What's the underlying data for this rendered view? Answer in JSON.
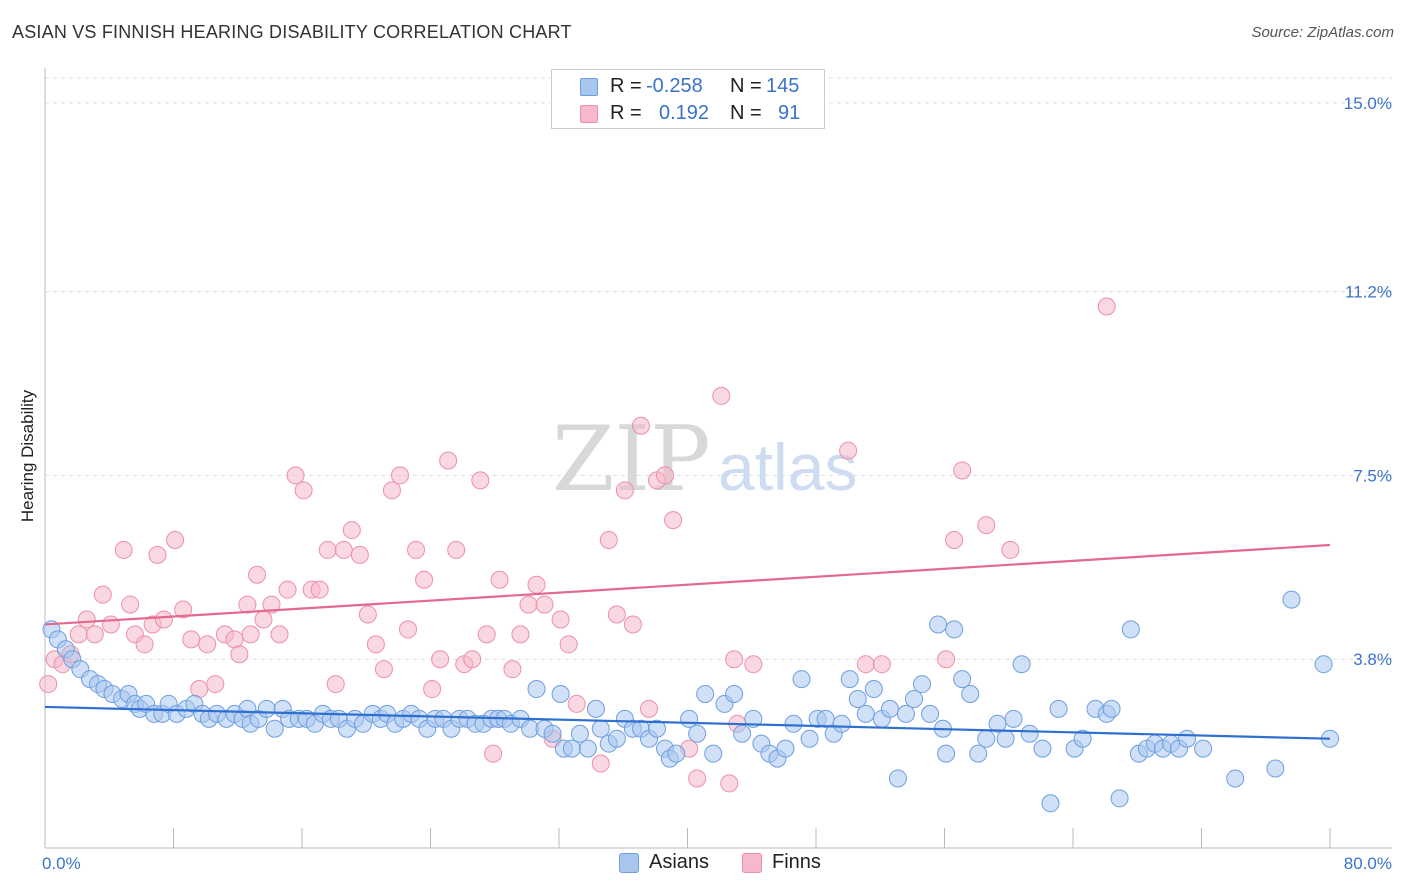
{
  "title": "ASIAN VS FINNISH HEARING DISABILITY CORRELATION CHART",
  "source": "Source: ZipAtlas.com",
  "watermark": {
    "zip": "ZIP",
    "atlas": "atlas"
  },
  "legend_top": [
    {
      "r_label": "R =",
      "r_value": "-0.258",
      "n_label": "N =",
      "n_value": "145",
      "color": "#a9c6ee"
    },
    {
      "r_label": "R =",
      "r_value": "0.192",
      "n_label": "N =",
      "n_value": "91",
      "color": "#f6b8ca"
    }
  ],
  "legend_bottom": [
    {
      "label": "Asians",
      "color": "#a9c6ee"
    },
    {
      "label": "Finns",
      "color": "#f6b8ca"
    }
  ],
  "colors": {
    "asian_fill": "#a9c6ee",
    "asian_stroke": "#6e9fe0",
    "asian_line": "#2f6fd0",
    "finn_fill": "#f6b8ca",
    "finn_stroke": "#ec8fab",
    "finn_line": "#e3698f",
    "tick_label": "#3a73c9",
    "grid": "#dddddd"
  },
  "chart_data": {
    "type": "scatter",
    "title": "ASIAN VS FINNISH HEARING DISABILITY CORRELATION CHART",
    "xlabel": "",
    "ylabel": "Hearing Disability",
    "xlim": [
      0,
      80
    ],
    "ylim": [
      0,
      15.5
    ],
    "x_tick_labels": [
      "0.0%",
      "80.0%"
    ],
    "y_ticks": [
      3.8,
      7.5,
      11.2,
      15.0
    ],
    "y_tick_labels": [
      "3.8%",
      "7.5%",
      "11.2%",
      "15.0%"
    ],
    "grid": "horizontal dashed",
    "series": [
      {
        "name": "Asians",
        "trend": {
          "x": [
            0,
            80
          ],
          "y": [
            2.84,
            2.2
          ]
        },
        "points": [
          [
            0.4,
            4.4
          ],
          [
            0.8,
            4.2
          ],
          [
            1.3,
            4.0
          ],
          [
            1.7,
            3.8
          ],
          [
            2.2,
            3.6
          ],
          [
            2.8,
            3.4
          ],
          [
            3.3,
            3.3
          ],
          [
            3.7,
            3.2
          ],
          [
            4.2,
            3.1
          ],
          [
            4.8,
            3.0
          ],
          [
            5.2,
            3.1
          ],
          [
            5.6,
            2.9
          ],
          [
            5.9,
            2.8
          ],
          [
            6.3,
            2.9
          ],
          [
            6.8,
            2.7
          ],
          [
            7.3,
            2.7
          ],
          [
            7.7,
            2.9
          ],
          [
            8.2,
            2.7
          ],
          [
            8.8,
            2.8
          ],
          [
            9.3,
            2.9
          ],
          [
            9.8,
            2.7
          ],
          [
            10.2,
            2.6
          ],
          [
            10.7,
            2.7
          ],
          [
            11.3,
            2.6
          ],
          [
            11.8,
            2.7
          ],
          [
            12.3,
            2.6
          ],
          [
            12.6,
            2.8
          ],
          [
            12.8,
            2.5
          ],
          [
            13.3,
            2.6
          ],
          [
            13.8,
            2.8
          ],
          [
            14.3,
            2.4
          ],
          [
            14.8,
            2.8
          ],
          [
            15.2,
            2.6
          ],
          [
            15.8,
            2.6
          ],
          [
            16.3,
            2.6
          ],
          [
            16.8,
            2.5
          ],
          [
            17.3,
            2.7
          ],
          [
            17.8,
            2.6
          ],
          [
            18.3,
            2.6
          ],
          [
            18.8,
            2.4
          ],
          [
            19.3,
            2.6
          ],
          [
            19.8,
            2.5
          ],
          [
            20.4,
            2.7
          ],
          [
            20.9,
            2.6
          ],
          [
            21.3,
            2.7
          ],
          [
            21.8,
            2.5
          ],
          [
            22.3,
            2.6
          ],
          [
            22.8,
            2.7
          ],
          [
            23.3,
            2.6
          ],
          [
            23.8,
            2.4
          ],
          [
            24.3,
            2.6
          ],
          [
            24.8,
            2.6
          ],
          [
            25.3,
            2.4
          ],
          [
            25.8,
            2.6
          ],
          [
            26.3,
            2.6
          ],
          [
            26.8,
            2.5
          ],
          [
            27.3,
            2.5
          ],
          [
            27.8,
            2.6
          ],
          [
            28.2,
            2.6
          ],
          [
            28.6,
            2.6
          ],
          [
            29.0,
            2.5
          ],
          [
            29.6,
            2.6
          ],
          [
            30.2,
            2.4
          ],
          [
            30.6,
            3.2
          ],
          [
            31.1,
            2.4
          ],
          [
            31.6,
            2.3
          ],
          [
            32.1,
            3.1
          ],
          [
            32.3,
            2.0
          ],
          [
            32.8,
            2.0
          ],
          [
            33.3,
            2.3
          ],
          [
            33.8,
            2.0
          ],
          [
            34.3,
            2.8
          ],
          [
            34.6,
            2.4
          ],
          [
            35.1,
            2.1
          ],
          [
            35.6,
            2.2
          ],
          [
            36.1,
            2.6
          ],
          [
            36.6,
            2.4
          ],
          [
            37.1,
            2.4
          ],
          [
            37.6,
            2.2
          ],
          [
            38.1,
            2.4
          ],
          [
            38.6,
            2.0
          ],
          [
            38.9,
            1.8
          ],
          [
            39.3,
            1.9
          ],
          [
            40.1,
            2.6
          ],
          [
            40.6,
            2.3
          ],
          [
            41.1,
            3.1
          ],
          [
            41.6,
            1.9
          ],
          [
            42.3,
            2.9
          ],
          [
            42.9,
            3.1
          ],
          [
            43.4,
            2.3
          ],
          [
            44.1,
            2.6
          ],
          [
            44.6,
            2.1
          ],
          [
            45.1,
            1.9
          ],
          [
            45.6,
            1.8
          ],
          [
            46.1,
            2.0
          ],
          [
            46.6,
            2.5
          ],
          [
            47.1,
            3.4
          ],
          [
            47.6,
            2.2
          ],
          [
            48.1,
            2.6
          ],
          [
            48.6,
            2.6
          ],
          [
            49.1,
            2.3
          ],
          [
            49.6,
            2.5
          ],
          [
            50.1,
            3.4
          ],
          [
            50.6,
            3.0
          ],
          [
            51.1,
            2.7
          ],
          [
            51.6,
            3.2
          ],
          [
            52.1,
            2.6
          ],
          [
            52.6,
            2.8
          ],
          [
            53.1,
            1.4
          ],
          [
            53.6,
            2.7
          ],
          [
            54.1,
            3.0
          ],
          [
            54.6,
            3.3
          ],
          [
            55.1,
            2.7
          ],
          [
            55.6,
            4.5
          ],
          [
            55.9,
            2.4
          ],
          [
            56.1,
            1.9
          ],
          [
            56.6,
            4.4
          ],
          [
            57.1,
            3.4
          ],
          [
            57.6,
            3.1
          ],
          [
            58.1,
            1.9
          ],
          [
            58.6,
            2.2
          ],
          [
            59.3,
            2.5
          ],
          [
            59.8,
            2.2
          ],
          [
            60.3,
            2.6
          ],
          [
            60.8,
            3.7
          ],
          [
            61.3,
            2.3
          ],
          [
            62.1,
            2.0
          ],
          [
            62.6,
            0.9
          ],
          [
            63.1,
            2.8
          ],
          [
            64.1,
            2.0
          ],
          [
            64.6,
            2.2
          ],
          [
            65.4,
            2.8
          ],
          [
            66.1,
            2.7
          ],
          [
            66.4,
            2.8
          ],
          [
            66.9,
            1.0
          ],
          [
            67.6,
            4.4
          ],
          [
            68.1,
            1.9
          ],
          [
            68.6,
            2.0
          ],
          [
            69.1,
            2.1
          ],
          [
            69.6,
            2.0
          ],
          [
            70.1,
            2.1
          ],
          [
            70.6,
            2.0
          ],
          [
            71.1,
            2.2
          ],
          [
            72.1,
            2.0
          ],
          [
            74.1,
            1.4
          ],
          [
            76.6,
            1.6
          ],
          [
            77.6,
            5.0
          ],
          [
            79.6,
            3.7
          ],
          [
            80.0,
            2.2
          ]
        ]
      },
      {
        "name": "Finns",
        "trend": {
          "x": [
            0,
            80
          ],
          "y": [
            4.5,
            6.1
          ]
        },
        "points": [
          [
            0.2,
            3.3
          ],
          [
            0.6,
            3.8
          ],
          [
            1.1,
            3.7
          ],
          [
            1.6,
            3.9
          ],
          [
            2.1,
            4.3
          ],
          [
            2.6,
            4.6
          ],
          [
            3.1,
            4.3
          ],
          [
            3.6,
            5.1
          ],
          [
            4.1,
            4.5
          ],
          [
            4.9,
            6.0
          ],
          [
            5.3,
            4.9
          ],
          [
            5.6,
            4.3
          ],
          [
            6.2,
            4.1
          ],
          [
            6.7,
            4.5
          ],
          [
            7.0,
            5.9
          ],
          [
            7.4,
            4.6
          ],
          [
            8.1,
            6.2
          ],
          [
            8.6,
            4.8
          ],
          [
            9.1,
            4.2
          ],
          [
            9.6,
            3.2
          ],
          [
            10.1,
            4.1
          ],
          [
            10.6,
            3.3
          ],
          [
            11.2,
            4.3
          ],
          [
            11.8,
            4.2
          ],
          [
            12.1,
            3.9
          ],
          [
            12.6,
            4.9
          ],
          [
            12.8,
            4.3
          ],
          [
            13.2,
            5.5
          ],
          [
            13.6,
            4.6
          ],
          [
            14.1,
            4.9
          ],
          [
            14.6,
            4.3
          ],
          [
            15.1,
            5.2
          ],
          [
            15.6,
            7.5
          ],
          [
            16.1,
            7.2
          ],
          [
            16.6,
            5.2
          ],
          [
            17.1,
            5.2
          ],
          [
            17.6,
            6.0
          ],
          [
            18.1,
            3.3
          ],
          [
            18.6,
            6.0
          ],
          [
            19.1,
            6.4
          ],
          [
            19.6,
            5.9
          ],
          [
            20.1,
            4.7
          ],
          [
            20.6,
            4.1
          ],
          [
            21.1,
            3.6
          ],
          [
            21.6,
            7.2
          ],
          [
            22.1,
            7.5
          ],
          [
            22.6,
            4.4
          ],
          [
            23.1,
            6.0
          ],
          [
            23.6,
            5.4
          ],
          [
            24.1,
            3.2
          ],
          [
            24.6,
            3.8
          ],
          [
            25.1,
            7.8
          ],
          [
            25.6,
            6.0
          ],
          [
            26.1,
            3.7
          ],
          [
            26.6,
            3.8
          ],
          [
            27.1,
            7.4
          ],
          [
            27.5,
            4.3
          ],
          [
            27.9,
            1.9
          ],
          [
            28.3,
            5.4
          ],
          [
            29.1,
            3.6
          ],
          [
            29.6,
            4.3
          ],
          [
            30.1,
            4.9
          ],
          [
            30.6,
            5.3
          ],
          [
            31.1,
            4.9
          ],
          [
            31.6,
            2.2
          ],
          [
            32.1,
            4.6
          ],
          [
            32.6,
            4.1
          ],
          [
            33.1,
            2.9
          ],
          [
            34.6,
            1.7
          ],
          [
            35.1,
            6.2
          ],
          [
            35.6,
            4.7
          ],
          [
            36.1,
            7.2
          ],
          [
            36.6,
            4.5
          ],
          [
            37.1,
            8.5
          ],
          [
            37.6,
            2.8
          ],
          [
            38.1,
            7.4
          ],
          [
            38.6,
            7.5
          ],
          [
            39.1,
            6.6
          ],
          [
            40.1,
            2.0
          ],
          [
            40.6,
            1.4
          ],
          [
            42.1,
            9.1
          ],
          [
            42.6,
            1.3
          ],
          [
            42.9,
            3.8
          ],
          [
            43.1,
            2.5
          ],
          [
            44.1,
            3.7
          ],
          [
            50.0,
            8.0
          ],
          [
            51.1,
            3.7
          ],
          [
            52.1,
            3.7
          ],
          [
            56.1,
            3.8
          ],
          [
            56.6,
            6.2
          ],
          [
            57.1,
            7.6
          ],
          [
            58.6,
            6.5
          ],
          [
            60.1,
            6.0
          ],
          [
            66.1,
            10.9
          ]
        ]
      }
    ]
  }
}
